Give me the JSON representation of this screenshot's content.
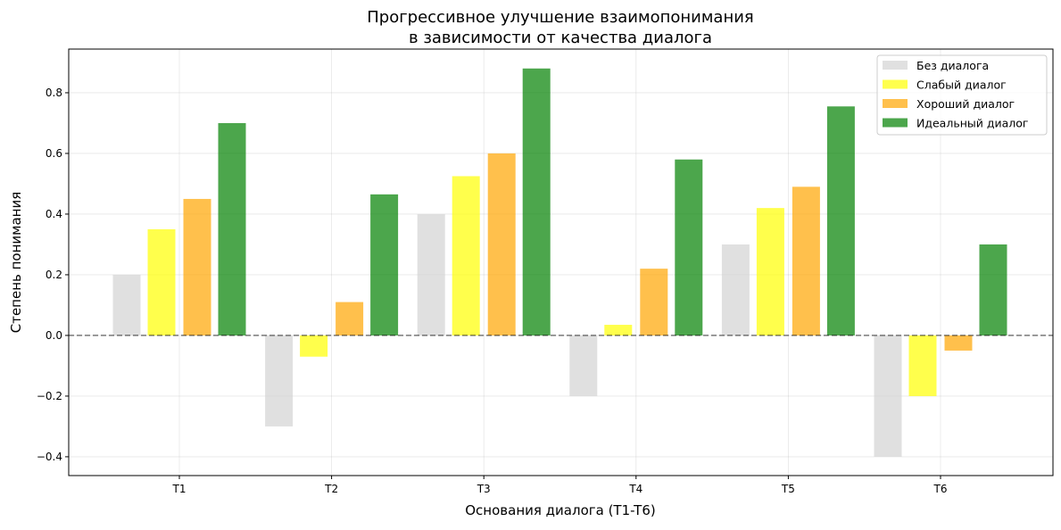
{
  "chart_data": {
    "type": "bar",
    "title": "Прогрессивное улучшение взаимопонимания\nв зависимости от качества диалога",
    "title_lines": [
      "Прогрессивное улучшение взаимопонимания",
      "в зависимости от качества диалога"
    ],
    "xlabel": "Основания диалога (T1-T6)",
    "ylabel": "Степень понимания",
    "categories": [
      "T1",
      "T2",
      "T3",
      "T4",
      "T5",
      "T6"
    ],
    "ylim": [
      -0.462,
      0.944
    ],
    "yticks": [
      -0.4,
      -0.2,
      0.0,
      0.2,
      0.4,
      0.6,
      0.8
    ],
    "ytick_labels": [
      "−0.4",
      "−0.2",
      "0.0",
      "0.2",
      "0.4",
      "0.6",
      "0.8"
    ],
    "grid": true,
    "legend_position": "top-right",
    "reference_line": 0,
    "series": [
      {
        "name": "Без диалога",
        "color": "#d3d3d3",
        "values": [
          0.2,
          -0.3,
          0.4,
          -0.2,
          0.3,
          -0.4
        ]
      },
      {
        "name": "Слабый диалог",
        "color": "#ffff00",
        "values": [
          0.35,
          -0.07,
          0.525,
          0.035,
          0.42,
          -0.2
        ]
      },
      {
        "name": "Хороший диалог",
        "color": "#ffa500",
        "values": [
          0.45,
          0.11,
          0.6,
          0.22,
          0.49,
          -0.05
        ]
      },
      {
        "name": "Идеальный диалог",
        "color": "#008000",
        "values": [
          0.7,
          0.465,
          0.88,
          0.58,
          0.755,
          0.3
        ]
      }
    ]
  }
}
